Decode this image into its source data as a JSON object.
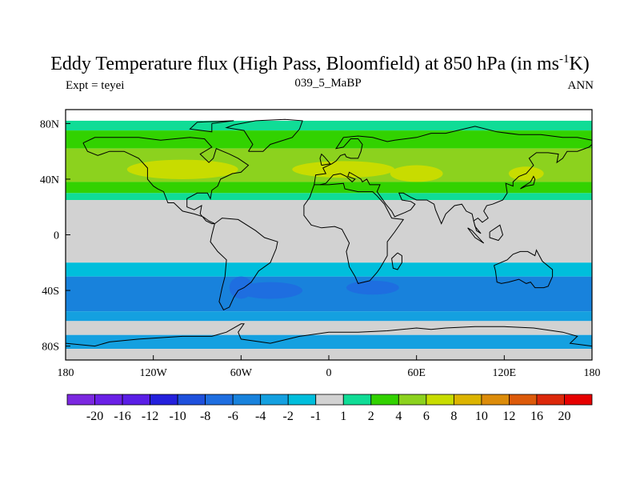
{
  "chart_data": {
    "type": "heatmap",
    "title_main": "Eddy Temperature flux (High Pass, Bloomfield) at 850 hPa (in ms",
    "title_exp": "-1",
    "title_end": "K)",
    "subtitle_left": "Expt = teyei",
    "subtitle_center": "039_5_MaBP",
    "subtitle_right": "ANN",
    "x_range": [
      -180,
      180
    ],
    "y_range": [
      -90,
      90
    ],
    "x_ticks": [
      {
        "lon": -180,
        "label": "180"
      },
      {
        "lon": -120,
        "label": "120W"
      },
      {
        "lon": -60,
        "label": "60W"
      },
      {
        "lon": 0,
        "label": "0"
      },
      {
        "lon": 60,
        "label": "60E"
      },
      {
        "lon": 120,
        "label": "120E"
      },
      {
        "lon": 180,
        "label": "180"
      }
    ],
    "y_ticks": [
      {
        "lat": 80,
        "label": "80N"
      },
      {
        "lat": 40,
        "label": "40N"
      },
      {
        "lat": 0,
        "label": "0"
      },
      {
        "lat": -40,
        "label": "40S"
      },
      {
        "lat": -80,
        "label": "80S"
      }
    ],
    "levels": [
      "-20",
      "-16",
      "-12",
      "-10",
      "-8",
      "-6",
      "-4",
      "-2",
      "-1",
      "1",
      "2",
      "4",
      "6",
      "8",
      "10",
      "12",
      "16",
      "20"
    ],
    "colors": [
      "#7b28e0",
      "#6a20e6",
      "#5a1ee6",
      "#2420dc",
      "#1e50dc",
      "#1e6ee0",
      "#1882dc",
      "#14a0e0",
      "#00bedc",
      "#d2d2d2",
      "#10dc96",
      "#32d200",
      "#8cd21e",
      "#c8dc00",
      "#dcb400",
      "#dc8c0a",
      "#dc5a0a",
      "#dc280a",
      "#e60000"
    ],
    "bands": [
      {
        "lat_top": 82,
        "lat_bottom": 75,
        "color": "#10dc96"
      },
      {
        "lat_top": 75,
        "lat_bottom": 62,
        "color": "#32d200"
      },
      {
        "lat_top": 62,
        "lat_bottom": 38,
        "color": "#8cd21e"
      },
      {
        "lat_top": 38,
        "lat_bottom": 30,
        "color": "#32d200"
      },
      {
        "lat_top": 30,
        "lat_bottom": 25,
        "color": "#10dc96"
      },
      {
        "lat_top": 25,
        "lat_bottom": -20,
        "color": "#d2d2d2"
      },
      {
        "lat_top": -20,
        "lat_bottom": -30,
        "color": "#00bedc"
      },
      {
        "lat_top": -30,
        "lat_bottom": -55,
        "color": "#1882dc"
      },
      {
        "lat_top": -55,
        "lat_bottom": -62,
        "color": "#14a0e0"
      },
      {
        "lat_top": -62,
        "lat_bottom": -72,
        "color": "#d2d2d2"
      },
      {
        "lat_top": -72,
        "lat_bottom": -82,
        "color": "#14a0e0"
      },
      {
        "lat_top": -82,
        "lat_bottom": -90,
        "color": "#d2d2d2"
      }
    ],
    "blobs": [
      {
        "lon": -100,
        "lat": 47,
        "rx": 38,
        "ry": 7,
        "color": "#c8dc00"
      },
      {
        "lon": 10,
        "lat": 47,
        "rx": 35,
        "ry": 6,
        "color": "#c8dc00"
      },
      {
        "lon": 60,
        "lat": 44,
        "rx": 18,
        "ry": 6,
        "color": "#c8dc00"
      },
      {
        "lon": 135,
        "lat": 44,
        "rx": 12,
        "ry": 5,
        "color": "#c8dc00"
      },
      {
        "lon": -40,
        "lat": -40,
        "rx": 22,
        "ry": 6,
        "color": "#1e6ee0"
      },
      {
        "lon": 30,
        "lat": -38,
        "rx": 18,
        "ry": 5,
        "color": "#1e6ee0"
      },
      {
        "lon": -60,
        "lat": -38,
        "rx": 8,
        "ry": 8,
        "color": "#1e6ee0"
      }
    ],
    "coastlines": [
      [
        [
          -168,
          66
        ],
        [
          -160,
          70
        ],
        [
          -145,
          70
        ],
        [
          -130,
          70
        ],
        [
          -115,
          68
        ],
        [
          -95,
          70
        ],
        [
          -85,
          69
        ],
        [
          -80,
          63
        ],
        [
          -88,
          58
        ],
        [
          -82,
          52
        ],
        [
          -79,
          55
        ],
        [
          -77,
          62
        ],
        [
          -68,
          58
        ],
        [
          -62,
          55
        ],
        [
          -55,
          50
        ],
        [
          -60,
          45
        ],
        [
          -66,
          44
        ],
        [
          -70,
          42
        ],
        [
          -74,
          40
        ],
        [
          -76,
          35
        ],
        [
          -80,
          32
        ],
        [
          -81,
          26
        ],
        [
          -83,
          30
        ],
        [
          -90,
          30
        ],
        [
          -97,
          26
        ],
        [
          -97,
          20
        ],
        [
          -92,
          18
        ],
        [
          -87,
          21
        ],
        [
          -88,
          15
        ],
        [
          -84,
          10
        ],
        [
          -80,
          8
        ],
        [
          -78,
          8
        ],
        [
          -82,
          10
        ],
        [
          -86,
          13
        ],
        [
          -92,
          15
        ],
        [
          -100,
          17
        ],
        [
          -106,
          23
        ],
        [
          -110,
          23
        ],
        [
          -113,
          31
        ],
        [
          -117,
          33
        ],
        [
          -120,
          35
        ],
        [
          -124,
          40
        ],
        [
          -124,
          48
        ],
        [
          -130,
          55
        ],
        [
          -140,
          60
        ],
        [
          -150,
          60
        ],
        [
          -158,
          57
        ],
        [
          -165,
          60
        ],
        [
          -168,
          66
        ]
      ],
      [
        [
          -78,
          8
        ],
        [
          -73,
          12
        ],
        [
          -62,
          11
        ],
        [
          -50,
          3
        ],
        [
          -44,
          -2
        ],
        [
          -35,
          -5
        ],
        [
          -36,
          -10
        ],
        [
          -40,
          -20
        ],
        [
          -48,
          -26
        ],
        [
          -53,
          -34
        ],
        [
          -58,
          -38
        ],
        [
          -62,
          -40
        ],
        [
          -65,
          -45
        ],
        [
          -68,
          -52
        ],
        [
          -72,
          -54
        ],
        [
          -75,
          -48
        ],
        [
          -73,
          -38
        ],
        [
          -71,
          -30
        ],
        [
          -70,
          -18
        ],
        [
          -76,
          -12
        ],
        [
          -81,
          -5
        ],
        [
          -80,
          0
        ],
        [
          -78,
          8
        ]
      ],
      [
        [
          -10,
          36
        ],
        [
          -6,
          36
        ],
        [
          0,
          36
        ],
        [
          10,
          37
        ],
        [
          11,
          33
        ],
        [
          20,
          31
        ],
        [
          30,
          31
        ],
        [
          33,
          28
        ],
        [
          38,
          22
        ],
        [
          43,
          12
        ],
        [
          51,
          11
        ],
        [
          45,
          2
        ],
        [
          40,
          -5
        ],
        [
          40,
          -15
        ],
        [
          35,
          -24
        ],
        [
          33,
          -27
        ],
        [
          28,
          -33
        ],
        [
          20,
          -35
        ],
        [
          18,
          -30
        ],
        [
          14,
          -23
        ],
        [
          12,
          -12
        ],
        [
          14,
          -6
        ],
        [
          9,
          4
        ],
        [
          4,
          6
        ],
        [
          -5,
          5
        ],
        [
          -12,
          7
        ],
        [
          -17,
          14
        ],
        [
          -17,
          21
        ],
        [
          -13,
          27
        ],
        [
          -10,
          36
        ]
      ],
      [
        [
          -10,
          36
        ],
        [
          -9,
          43
        ],
        [
          -2,
          44
        ],
        [
          -4,
          48
        ],
        [
          2,
          51
        ],
        [
          5,
          53
        ],
        [
          8,
          57
        ],
        [
          11,
          58
        ],
        [
          12,
          56
        ],
        [
          15,
          55
        ],
        [
          20,
          55
        ],
        [
          22,
          60
        ],
        [
          23,
          65
        ],
        [
          20,
          69
        ],
        [
          15,
          69
        ],
        [
          10,
          63
        ],
        [
          5,
          62
        ],
        [
          10,
          70
        ],
        [
          20,
          71
        ],
        [
          30,
          70
        ],
        [
          40,
          67
        ],
        [
          45,
          68
        ],
        [
          60,
          70
        ],
        [
          70,
          73
        ],
        [
          80,
          73
        ],
        [
          100,
          78
        ],
        [
          115,
          74
        ],
        [
          130,
          72
        ],
        [
          145,
          72
        ],
        [
          160,
          70
        ],
        [
          170,
          70
        ],
        [
          180,
          68
        ]
      ],
      [
        [
          180,
          65
        ],
        [
          178,
          63
        ],
        [
          170,
          60
        ],
        [
          163,
          60
        ],
        [
          160,
          55
        ],
        [
          156,
          52
        ],
        [
          157,
          58
        ],
        [
          150,
          59
        ],
        [
          142,
          59
        ],
        [
          137,
          55
        ],
        [
          140,
          50
        ],
        [
          135,
          44
        ],
        [
          130,
          42
        ],
        [
          126,
          38
        ],
        [
          126,
          35
        ],
        [
          121,
          37
        ],
        [
          122,
          30
        ],
        [
          119,
          25
        ],
        [
          112,
          22
        ],
        [
          108,
          21
        ],
        [
          106,
          17
        ],
        [
          109,
          12
        ],
        [
          105,
          9
        ],
        [
          102,
          12
        ],
        [
          99,
          10
        ],
        [
          101,
          3
        ],
        [
          104,
          1
        ],
        [
          100,
          6
        ],
        [
          98,
          15
        ],
        [
          94,
          17
        ],
        [
          91,
          22
        ],
        [
          86,
          21
        ],
        [
          80,
          15
        ],
        [
          77,
          8
        ],
        [
          73,
          18
        ],
        [
          72,
          22
        ],
        [
          67,
          25
        ],
        [
          60,
          25
        ],
        [
          56,
          27
        ],
        [
          51,
          30
        ],
        [
          48,
          30
        ],
        [
          50,
          25
        ],
        [
          56,
          24
        ],
        [
          59,
          22
        ],
        [
          56,
          18
        ],
        [
          52,
          16
        ],
        [
          45,
          13
        ],
        [
          43,
          17
        ],
        [
          39,
          22
        ],
        [
          35,
          28
        ],
        [
          33,
          31
        ],
        [
          35,
          36
        ],
        [
          28,
          36
        ],
        [
          26,
          40
        ],
        [
          23,
          38
        ],
        [
          22,
          40
        ],
        [
          19,
          42
        ],
        [
          14,
          45
        ],
        [
          13,
          42
        ],
        [
          18,
          40
        ],
        [
          16,
          38
        ],
        [
          12,
          42
        ],
        [
          8,
          44
        ],
        [
          3,
          43
        ],
        [
          -2,
          37
        ],
        [
          -6,
          36
        ]
      ],
      [
        [
          -55,
          60
        ],
        [
          -45,
          60
        ],
        [
          -40,
          65
        ],
        [
          -25,
          70
        ],
        [
          -20,
          76
        ],
        [
          -18,
          82
        ],
        [
          -30,
          83
        ],
        [
          -50,
          82
        ],
        [
          -65,
          79
        ],
        [
          -70,
          77
        ],
        [
          -58,
          75
        ],
        [
          -55,
          70
        ],
        [
          -52,
          65
        ],
        [
          -55,
          60
        ]
      ],
      [
        [
          113,
          -22
        ],
        [
          114,
          -26
        ],
        [
          115,
          -34
        ],
        [
          118,
          -35
        ],
        [
          123,
          -34
        ],
        [
          130,
          -32
        ],
        [
          135,
          -35
        ],
        [
          138,
          -34
        ],
        [
          141,
          -38
        ],
        [
          147,
          -38
        ],
        [
          150,
          -37
        ],
        [
          153,
          -30
        ],
        [
          153,
          -25
        ],
        [
          146,
          -19
        ],
        [
          142,
          -11
        ],
        [
          141,
          -15
        ],
        [
          136,
          -12
        ],
        [
          131,
          -12
        ],
        [
          126,
          -14
        ],
        [
          122,
          -18
        ],
        [
          113,
          -22
        ]
      ],
      [
        [
          -180,
          -78
        ],
        [
          -160,
          -80
        ],
        [
          -150,
          -77
        ],
        [
          -130,
          -75
        ],
        [
          -100,
          -73
        ],
        [
          -80,
          -73
        ],
        [
          -70,
          -70
        ],
        [
          -60,
          -64
        ],
        [
          -58,
          -64
        ],
        [
          -62,
          -70
        ],
        [
          -60,
          -75
        ],
        [
          -40,
          -78
        ],
        [
          -20,
          -73
        ],
        [
          0,
          -70
        ],
        [
          20,
          -70
        ],
        [
          40,
          -69
        ],
        [
          60,
          -67
        ],
        [
          70,
          -68
        ],
        [
          80,
          -67
        ],
        [
          100,
          -66
        ],
        [
          120,
          -66
        ],
        [
          140,
          -67
        ],
        [
          160,
          -70
        ],
        [
          170,
          -73
        ],
        [
          165,
          -78
        ],
        [
          180,
          -80
        ]
      ],
      [
        [
          47,
          -13
        ],
        [
          50,
          -15
        ],
        [
          50,
          -20
        ],
        [
          47,
          -25
        ],
        [
          44,
          -24
        ],
        [
          43,
          -17
        ],
        [
          47,
          -13
        ]
      ],
      [
        [
          131,
          33
        ],
        [
          135,
          35
        ],
        [
          140,
          36
        ],
        [
          141,
          40
        ],
        [
          140,
          42
        ],
        [
          138,
          38
        ],
        [
          132,
          34
        ],
        [
          131,
          33
        ]
      ],
      [
        [
          -5,
          50
        ],
        [
          1,
          51
        ],
        [
          -3,
          56
        ],
        [
          -5,
          58
        ],
        [
          -6,
          55
        ],
        [
          -5,
          50
        ]
      ],
      [
        [
          95,
          5
        ],
        [
          98,
          3
        ],
        [
          105,
          -5
        ],
        [
          106,
          -6
        ],
        [
          100,
          -2
        ],
        [
          95,
          5
        ]
      ],
      [
        [
          110,
          2
        ],
        [
          117,
          7
        ],
        [
          119,
          0
        ],
        [
          116,
          -4
        ],
        [
          110,
          -2
        ],
        [
          110,
          2
        ]
      ],
      [
        [
          -80,
          80
        ],
        [
          -65,
          82
        ],
        [
          -90,
          81
        ],
        [
          -95,
          76
        ],
        [
          -80,
          74
        ],
        [
          -80,
          80
        ]
      ]
    ]
  },
  "colorbar_labels": [
    "-20",
    "-16",
    "-12",
    "-10",
    "-8",
    "-6",
    "-4",
    "-2",
    "-1",
    "1",
    "2",
    "4",
    "6",
    "8",
    "10",
    "12",
    "16",
    "20"
  ]
}
